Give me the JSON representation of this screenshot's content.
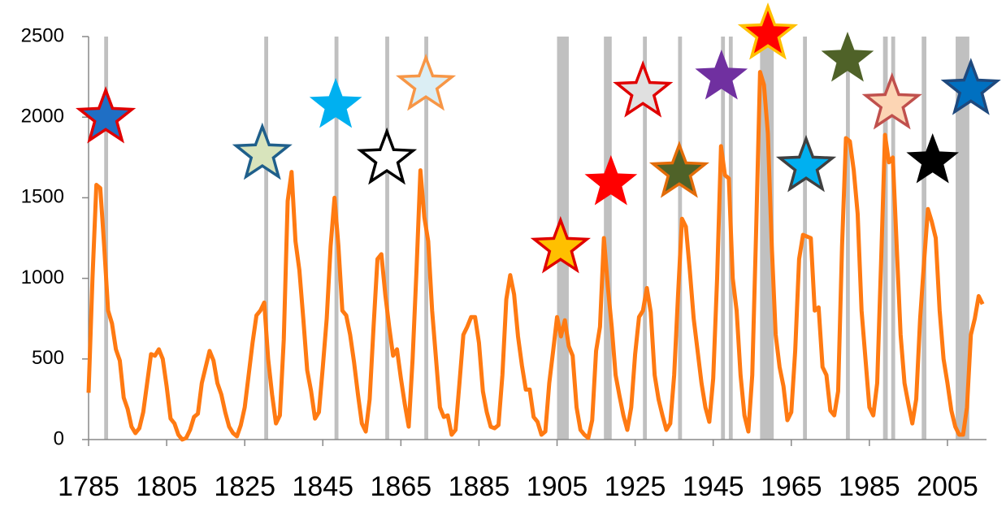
{
  "chart_data": {
    "type": "line",
    "x": [
      1785,
      1786,
      1787,
      1788,
      1789,
      1790,
      1791,
      1792,
      1793,
      1794,
      1795,
      1796,
      1797,
      1798,
      1799,
      1800,
      1801,
      1802,
      1803,
      1804,
      1805,
      1806,
      1807,
      1808,
      1809,
      1810,
      1811,
      1812,
      1813,
      1814,
      1815,
      1816,
      1817,
      1818,
      1819,
      1820,
      1821,
      1822,
      1823,
      1824,
      1825,
      1826,
      1827,
      1828,
      1829,
      1830,
      1831,
      1832,
      1833,
      1834,
      1835,
      1836,
      1837,
      1838,
      1839,
      1840,
      1841,
      1842,
      1843,
      1844,
      1845,
      1846,
      1847,
      1848,
      1849,
      1850,
      1851,
      1852,
      1853,
      1854,
      1855,
      1856,
      1857,
      1858,
      1859,
      1860,
      1861,
      1862,
      1863,
      1864,
      1865,
      1866,
      1867,
      1868,
      1869,
      1870,
      1871,
      1872,
      1873,
      1874,
      1875,
      1876,
      1877,
      1878,
      1879,
      1880,
      1881,
      1882,
      1883,
      1884,
      1885,
      1886,
      1887,
      1888,
      1889,
      1890,
      1891,
      1892,
      1893,
      1894,
      1895,
      1896,
      1897,
      1898,
      1899,
      1900,
      1901,
      1902,
      1903,
      1904,
      1905,
      1906,
      1907,
      1908,
      1909,
      1910,
      1911,
      1912,
      1913,
      1914,
      1915,
      1916,
      1917,
      1918,
      1919,
      1920,
      1921,
      1922,
      1923,
      1924,
      1925,
      1926,
      1927,
      1928,
      1929,
      1930,
      1931,
      1932,
      1933,
      1934,
      1935,
      1936,
      1937,
      1938,
      1939,
      1940,
      1941,
      1942,
      1943,
      1944,
      1945,
      1946,
      1947,
      1948,
      1949,
      1950,
      1951,
      1952,
      1953,
      1954,
      1955,
      1956,
      1957,
      1958,
      1959,
      1960,
      1961,
      1962,
      1963,
      1964,
      1965,
      1966,
      1967,
      1968,
      1969,
      1970,
      1971,
      1972,
      1973,
      1974,
      1975,
      1976,
      1977,
      1978,
      1979,
      1980,
      1981,
      1982,
      1983,
      1984,
      1985,
      1986,
      1987,
      1988,
      1989,
      1990,
      1991,
      1992,
      1993,
      1994,
      1995,
      1996,
      1997,
      1998,
      1999,
      2000,
      2001,
      2002,
      2003,
      2004,
      2005,
      2006,
      2007,
      2008,
      2009,
      2010,
      2011,
      2012,
      2013,
      2014
    ],
    "series": [
      {
        "color": "#ff7a12",
        "values": [
          290,
          1000,
          1580,
          1560,
          1200,
          800,
          720,
          560,
          490,
          260,
          190,
          80,
          40,
          70,
          170,
          350,
          530,
          520,
          560,
          500,
          330,
          130,
          100,
          30,
          0,
          10,
          60,
          140,
          160,
          350,
          450,
          550,
          490,
          350,
          280,
          170,
          80,
          40,
          20,
          90,
          200,
          400,
          600,
          770,
          800,
          850,
          500,
          280,
          100,
          150,
          620,
          1480,
          1660,
          1230,
          1050,
          750,
          430,
          300,
          130,
          170,
          450,
          750,
          1200,
          1500,
          1200,
          800,
          770,
          650,
          480,
          280,
          100,
          50,
          250,
          700,
          1120,
          1150,
          900,
          700,
          520,
          560,
          380,
          220,
          80,
          500,
          1050,
          1670,
          1380,
          1230,
          800,
          500,
          200,
          140,
          150,
          30,
          60,
          350,
          650,
          700,
          760,
          760,
          600,
          300,
          170,
          80,
          70,
          90,
          400,
          870,
          1020,
          900,
          640,
          460,
          310,
          310,
          140,
          110,
          30,
          50,
          350,
          550,
          760,
          640,
          740,
          580,
          520,
          200,
          60,
          30,
          10,
          120,
          550,
          700,
          1250,
          950,
          700,
          400,
          270,
          150,
          60,
          200,
          530,
          760,
          800,
          940,
          790,
          400,
          250,
          150,
          60,
          100,
          400,
          900,
          1370,
          1320,
          1050,
          750,
          550,
          350,
          200,
          110,
          380,
          1000,
          1820,
          1640,
          1620,
          1000,
          800,
          400,
          150,
          50,
          400,
          1300,
          2280,
          2200,
          1900,
          1200,
          650,
          450,
          330,
          120,
          170,
          550,
          1120,
          1270,
          1260,
          1250,
          800,
          820,
          450,
          400,
          180,
          150,
          300,
          1200,
          1870,
          1850,
          1670,
          1400,
          800,
          500,
          200,
          150,
          350,
          1100,
          1890,
          1720,
          1750,
          1200,
          650,
          350,
          220,
          100,
          250,
          750,
          1100,
          1430,
          1350,
          1250,
          800,
          500,
          350,
          180,
          80,
          30,
          30,
          200,
          650,
          750,
          890,
          840
        ]
      }
    ],
    "bands": [
      [
        1789,
        1790
      ],
      [
        1830,
        1831
      ],
      [
        1848,
        1849
      ],
      [
        1861,
        1862
      ],
      [
        1871,
        1872
      ],
      [
        1905,
        1908
      ],
      [
        1917,
        1919
      ],
      [
        1927,
        1928
      ],
      [
        1936,
        1937
      ],
      [
        1947,
        1948
      ],
      [
        1949,
        1950
      ],
      [
        1957,
        1960.5
      ],
      [
        1968,
        1969
      ],
      [
        1979,
        1980
      ],
      [
        1988.5,
        1989.7
      ],
      [
        1990.6,
        1991.6
      ],
      [
        1998.4,
        1999.6
      ],
      [
        2007.1,
        2010.6
      ]
    ],
    "band_color": "#c0c0c0",
    "markers": [
      {
        "x": 1789.4,
        "value": 1996,
        "color": "#1f6fc5",
        "edge": "#e00000"
      },
      {
        "x": 1829.5,
        "value": 1770,
        "color": "#d8e4bc",
        "edge": "#1f5f8b"
      },
      {
        "x": 1848.3,
        "value": 2072,
        "color": "#00b0f0",
        "edge": null
      },
      {
        "x": 1861.4,
        "value": 1740,
        "color": "#ffffff",
        "edge": "#000000"
      },
      {
        "x": 1871.4,
        "value": 2198,
        "color": "#dbeef4",
        "edge": "#f79646"
      },
      {
        "x": 1905.9,
        "value": 1190,
        "color": "#ffc000",
        "edge": "#e00000"
      },
      {
        "x": 1918.8,
        "value": 1593,
        "color": "#ff0000",
        "edge": null
      },
      {
        "x": 1927,
        "value": 2157,
        "color": "#e0e0e0",
        "edge": "#e00000"
      },
      {
        "x": 1936.3,
        "value": 1658,
        "color": "#4f6228",
        "edge": "#e36c09"
      },
      {
        "x": 1947.1,
        "value": 2248,
        "color": "#7030a0",
        "edge": null
      },
      {
        "x": 1959,
        "value": 2515,
        "color": "#ff0000",
        "edge": "#ffc000"
      },
      {
        "x": 1968.8,
        "value": 1694,
        "color": "#00b0f0",
        "edge": "#404040"
      },
      {
        "x": 1979.4,
        "value": 2359,
        "color": "#4f6228",
        "edge": null
      },
      {
        "x": 1990.8,
        "value": 2082,
        "color": "#fcd5b4",
        "edge": "#c0504d"
      },
      {
        "x": 2001.2,
        "value": 1729,
        "color": "#000000",
        "edge": null
      },
      {
        "x": 2011,
        "value": 2172,
        "color": "#0070c0",
        "edge": "#1f497d"
      }
    ],
    "xlim": [
      1785,
      2015
    ],
    "ylim": [
      0,
      2500
    ],
    "xticks": [
      1785,
      1805,
      1825,
      1845,
      1865,
      1885,
      1905,
      1925,
      1945,
      1965,
      1985,
      2005
    ],
    "yticks": [
      0,
      500,
      1000,
      1500,
      2000,
      2500
    ],
    "grid": false
  }
}
